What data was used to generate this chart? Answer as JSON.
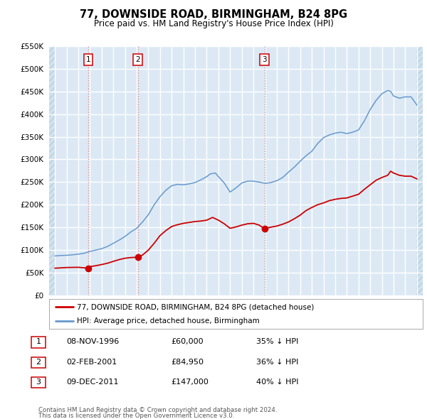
{
  "title1": "77, DOWNSIDE ROAD, BIRMINGHAM, B24 8PG",
  "title2": "Price paid vs. HM Land Registry's House Price Index (HPI)",
  "legend_red": "77, DOWNSIDE ROAD, BIRMINGHAM, B24 8PG (detached house)",
  "legend_blue": "HPI: Average price, detached house, Birmingham",
  "footer1": "Contains HM Land Registry data © Crown copyright and database right 2024.",
  "footer2": "This data is licensed under the Open Government Licence v3.0.",
  "transactions": [
    {
      "label": "1",
      "date": "08-NOV-1996",
      "price": 60000,
      "pct": "35%",
      "year": 1996.86
    },
    {
      "label": "2",
      "date": "02-FEB-2001",
      "price": 84950,
      "pct": "36%",
      "year": 2001.09
    },
    {
      "label": "3",
      "date": "09-DEC-2011",
      "price": 147000,
      "pct": "40%",
      "year": 2011.94
    }
  ],
  "ylim": [
    0,
    550000
  ],
  "yticks": [
    0,
    50000,
    100000,
    150000,
    200000,
    250000,
    300000,
    350000,
    400000,
    450000,
    500000,
    550000
  ],
  "xlim_start": 1993.5,
  "xlim_end": 2025.5,
  "plot_bg": "#dce9f5",
  "hatch_color": "#b8cfe0",
  "red_line_color": "#cc0000",
  "blue_line_color": "#6699cc",
  "grid_color": "#ffffff",
  "vline_color": "#e88080",
  "marker_color": "#cc0000",
  "hpi_data": [
    [
      1994.0,
      87000
    ],
    [
      1994.5,
      88000
    ],
    [
      1995.0,
      88500
    ],
    [
      1995.5,
      89500
    ],
    [
      1996.0,
      91000
    ],
    [
      1996.5,
      93000
    ],
    [
      1997.0,
      97000
    ],
    [
      1997.5,
      100000
    ],
    [
      1998.0,
      103000
    ],
    [
      1998.5,
      108000
    ],
    [
      1999.0,
      115000
    ],
    [
      1999.5,
      122000
    ],
    [
      2000.0,
      130000
    ],
    [
      2000.5,
      140000
    ],
    [
      2001.0,
      148000
    ],
    [
      2001.5,
      162000
    ],
    [
      2002.0,
      178000
    ],
    [
      2002.5,
      200000
    ],
    [
      2003.0,
      218000
    ],
    [
      2003.5,
      232000
    ],
    [
      2004.0,
      242000
    ],
    [
      2004.5,
      245000
    ],
    [
      2005.0,
      244000
    ],
    [
      2005.5,
      246000
    ],
    [
      2006.0,
      249000
    ],
    [
      2006.5,
      255000
    ],
    [
      2007.0,
      262000
    ],
    [
      2007.3,
      268000
    ],
    [
      2007.75,
      270000
    ],
    [
      2008.0,
      262000
    ],
    [
      2008.5,
      248000
    ],
    [
      2009.0,
      228000
    ],
    [
      2009.5,
      237000
    ],
    [
      2010.0,
      248000
    ],
    [
      2010.5,
      252000
    ],
    [
      2011.0,
      252000
    ],
    [
      2011.5,
      250000
    ],
    [
      2012.0,
      247000
    ],
    [
      2012.5,
      249000
    ],
    [
      2013.0,
      253000
    ],
    [
      2013.5,
      260000
    ],
    [
      2014.0,
      272000
    ],
    [
      2014.5,
      283000
    ],
    [
      2015.0,
      296000
    ],
    [
      2015.5,
      308000
    ],
    [
      2016.0,
      318000
    ],
    [
      2016.5,
      335000
    ],
    [
      2017.0,
      348000
    ],
    [
      2017.5,
      354000
    ],
    [
      2018.0,
      358000
    ],
    [
      2018.5,
      360000
    ],
    [
      2019.0,
      357000
    ],
    [
      2019.5,
      360000
    ],
    [
      2020.0,
      365000
    ],
    [
      2020.5,
      385000
    ],
    [
      2021.0,
      410000
    ],
    [
      2021.5,
      430000
    ],
    [
      2022.0,
      445000
    ],
    [
      2022.5,
      452000
    ],
    [
      2022.75,
      450000
    ],
    [
      2023.0,
      440000
    ],
    [
      2023.5,
      435000
    ],
    [
      2024.0,
      438000
    ],
    [
      2024.5,
      438000
    ],
    [
      2025.0,
      420000
    ]
  ],
  "red_data": [
    [
      1994.0,
      60000
    ],
    [
      1995.0,
      61500
    ],
    [
      1996.0,
      62000
    ],
    [
      1996.86,
      60000
    ],
    [
      1997.0,
      63500
    ],
    [
      1997.5,
      65500
    ],
    [
      1998.0,
      68000
    ],
    [
      1998.5,
      71000
    ],
    [
      1999.0,
      75000
    ],
    [
      1999.5,
      79000
    ],
    [
      2000.0,
      82000
    ],
    [
      2000.5,
      83500
    ],
    [
      2001.0,
      84000
    ],
    [
      2001.09,
      84950
    ],
    [
      2001.5,
      89000
    ],
    [
      2002.0,
      100000
    ],
    [
      2002.5,
      115000
    ],
    [
      2003.0,
      132000
    ],
    [
      2003.5,
      143000
    ],
    [
      2004.0,
      152000
    ],
    [
      2004.5,
      156000
    ],
    [
      2005.0,
      159000
    ],
    [
      2005.5,
      161000
    ],
    [
      2006.0,
      163000
    ],
    [
      2006.5,
      164000
    ],
    [
      2007.0,
      166000
    ],
    [
      2007.5,
      172000
    ],
    [
      2008.0,
      166000
    ],
    [
      2008.5,
      158000
    ],
    [
      2009.0,
      148000
    ],
    [
      2009.5,
      151000
    ],
    [
      2010.0,
      155000
    ],
    [
      2010.5,
      158000
    ],
    [
      2011.0,
      159000
    ],
    [
      2011.5,
      155000
    ],
    [
      2011.94,
      147000
    ],
    [
      2012.0,
      148000
    ],
    [
      2012.5,
      150500
    ],
    [
      2013.0,
      153000
    ],
    [
      2013.5,
      157000
    ],
    [
      2014.0,
      162000
    ],
    [
      2014.5,
      169000
    ],
    [
      2015.0,
      177000
    ],
    [
      2015.5,
      187000
    ],
    [
      2016.0,
      194000
    ],
    [
      2016.5,
      200000
    ],
    [
      2017.0,
      204000
    ],
    [
      2017.5,
      209000
    ],
    [
      2018.0,
      212000
    ],
    [
      2018.5,
      214000
    ],
    [
      2019.0,
      215000
    ],
    [
      2019.5,
      219000
    ],
    [
      2020.0,
      223000
    ],
    [
      2020.5,
      234000
    ],
    [
      2021.0,
      244000
    ],
    [
      2021.5,
      254000
    ],
    [
      2022.0,
      260000
    ],
    [
      2022.5,
      265000
    ],
    [
      2022.75,
      274000
    ],
    [
      2023.0,
      270000
    ],
    [
      2023.5,
      265000
    ],
    [
      2024.0,
      263000
    ],
    [
      2024.5,
      263000
    ],
    [
      2025.0,
      257000
    ]
  ]
}
